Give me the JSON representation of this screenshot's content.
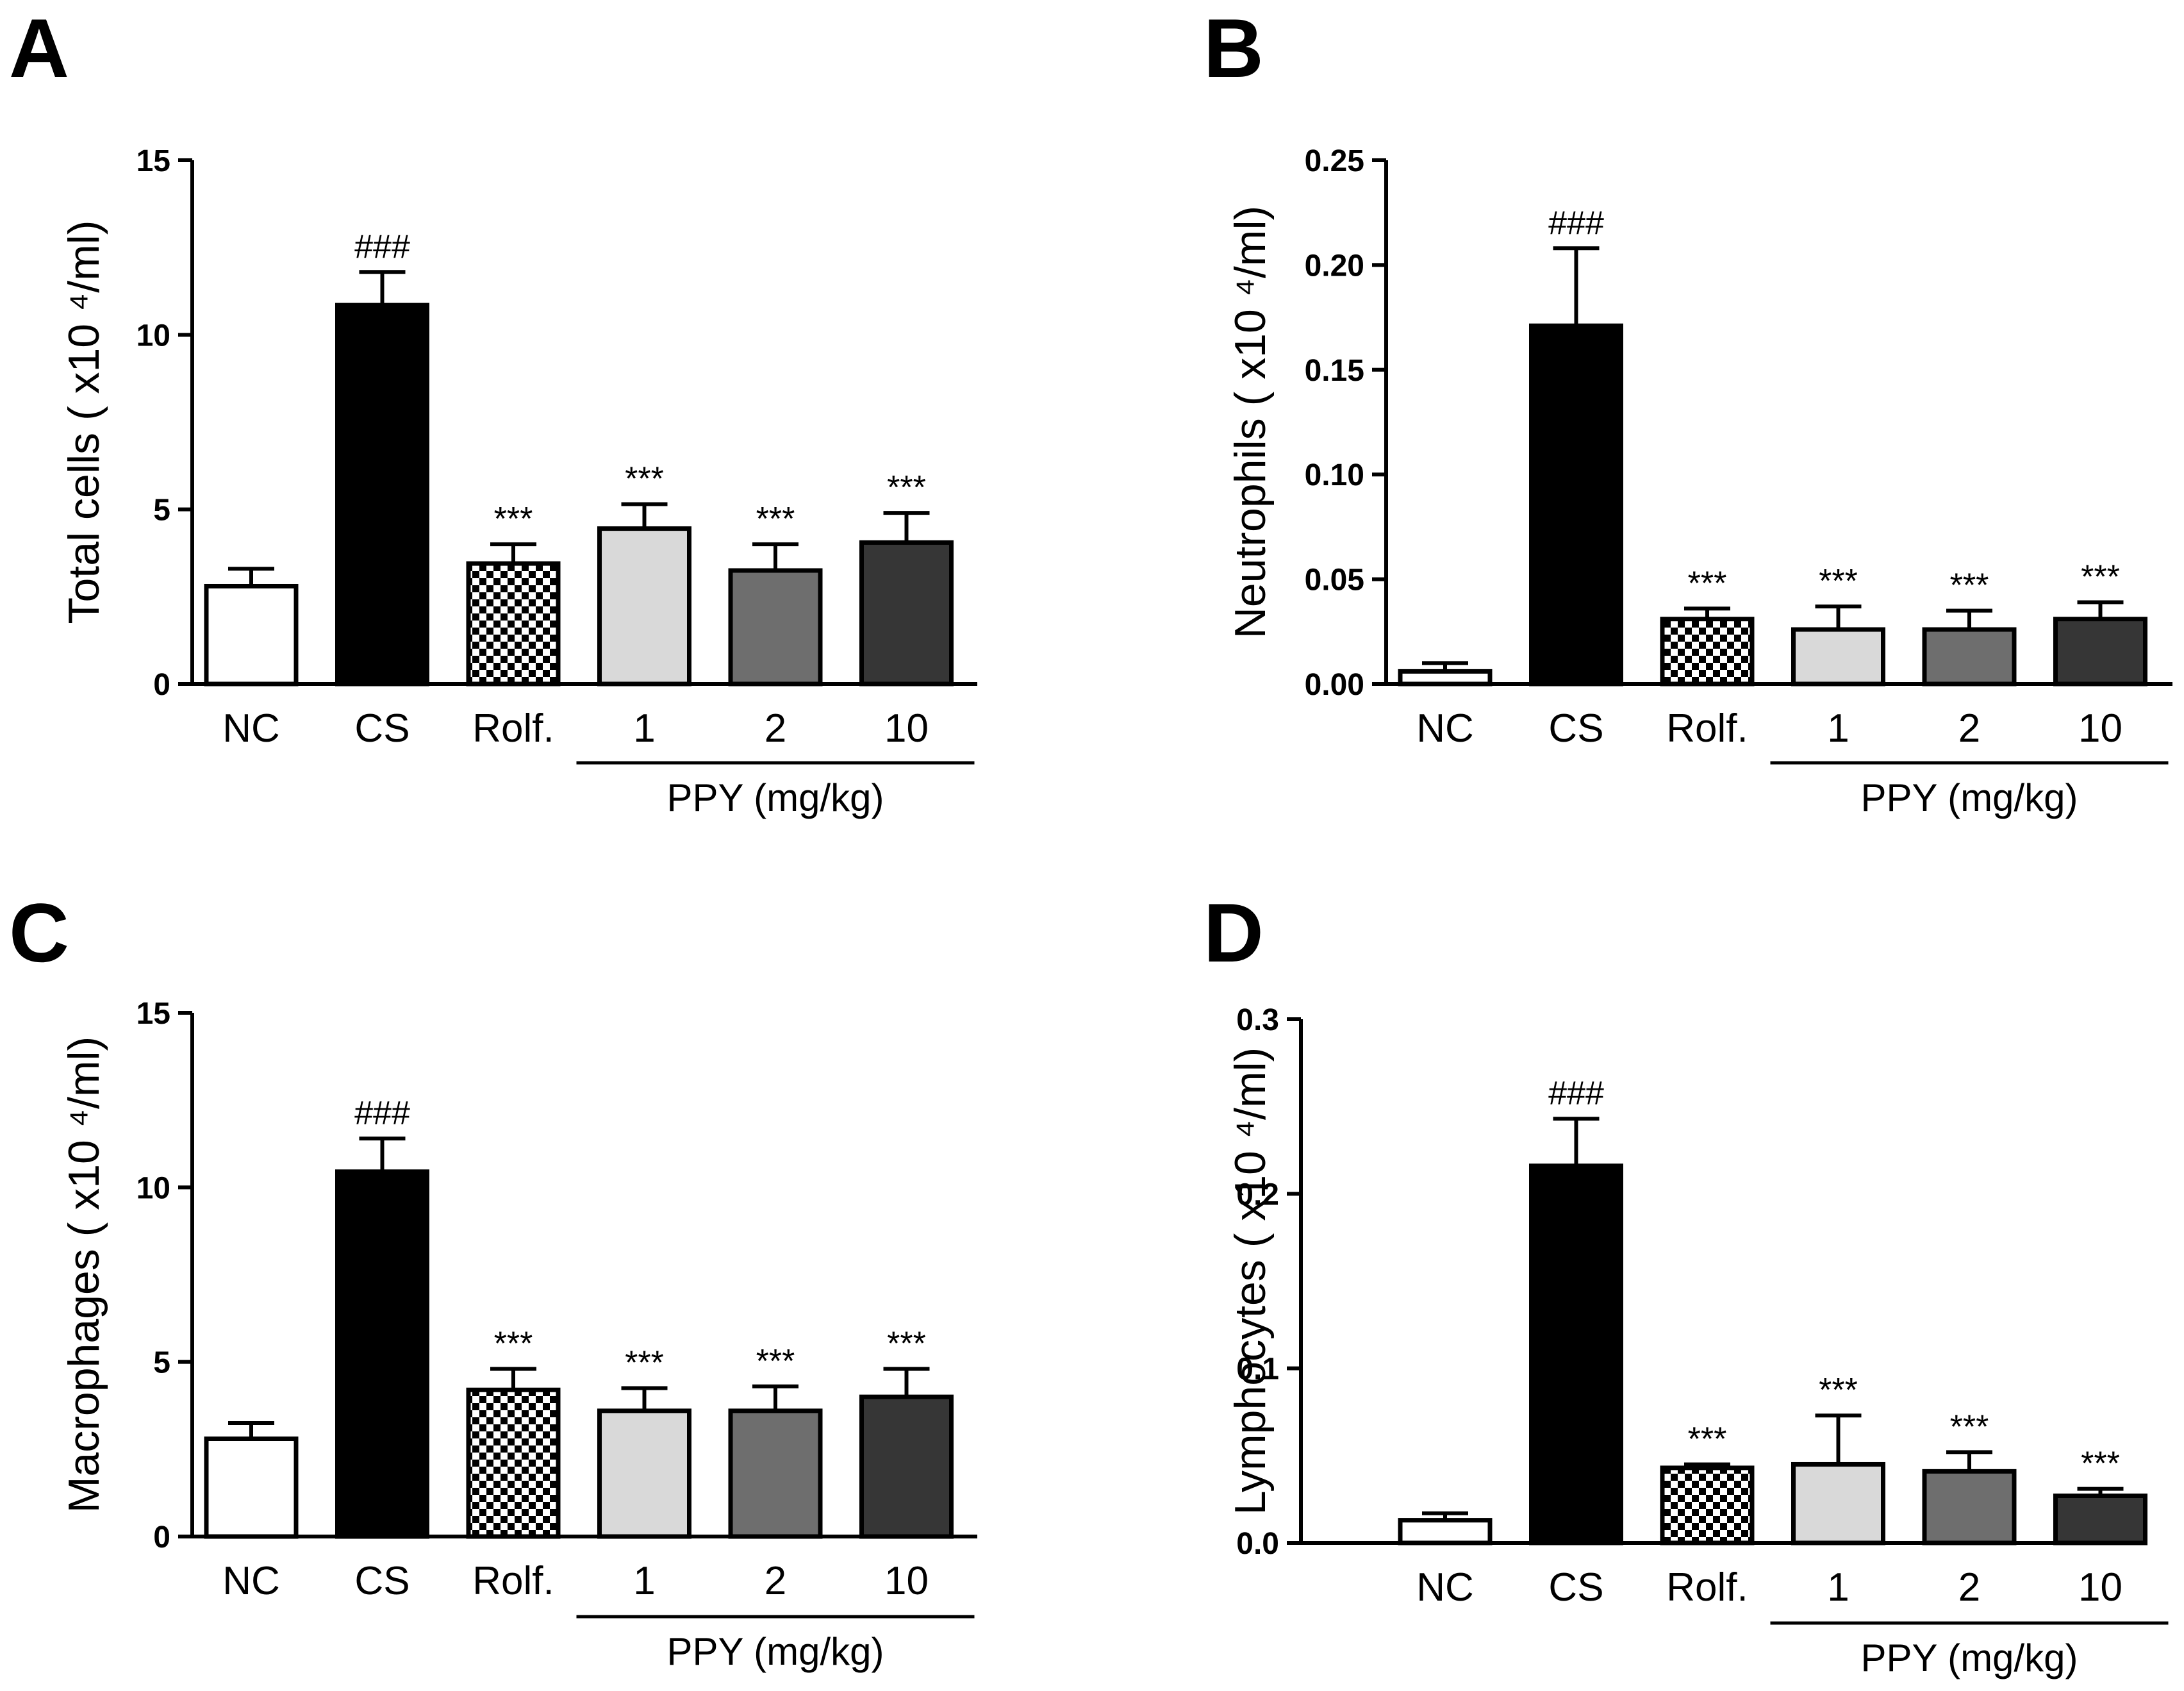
{
  "chart_data": [
    {
      "panel": "A",
      "type": "bar",
      "ylabel": "Total cells ( x10 ⁴/ml)",
      "ylim": [
        0,
        15
      ],
      "yticks": [
        "0",
        "5",
        "10",
        "15"
      ],
      "categories": [
        "NC",
        "CS",
        "Rolf.",
        "1",
        "2",
        "10"
      ],
      "values": [
        2.8,
        10.85,
        3.45,
        4.45,
        3.25,
        4.05
      ],
      "errors": [
        0.5,
        0.95,
        0.55,
        0.7,
        0.75,
        0.85
      ],
      "significance": [
        "",
        "###",
        "***",
        "***",
        "***",
        "***"
      ],
      "group_label": "PPY (mg/kg)"
    },
    {
      "panel": "B",
      "type": "bar",
      "ylabel": "Neutrophils ( x10 ⁴/ml)",
      "ylim": [
        0,
        0.25
      ],
      "yticks": [
        "0.00",
        "0.05",
        "0.10",
        "0.15",
        "0.20",
        "0.25"
      ],
      "categories": [
        "NC",
        "CS",
        "Rolf.",
        "1",
        "2",
        "10"
      ],
      "values": [
        0.006,
        0.171,
        0.031,
        0.026,
        0.026,
        0.031
      ],
      "errors": [
        0.004,
        0.037,
        0.005,
        0.011,
        0.009,
        0.008
      ],
      "significance": [
        "",
        "###",
        "***",
        "***",
        "***",
        "***"
      ],
      "group_label": "PPY (mg/kg)"
    },
    {
      "panel": "C",
      "type": "bar",
      "ylabel": "Macrophages ( x10 ⁴/ml)",
      "ylim": [
        0,
        15
      ],
      "yticks": [
        "0",
        "5",
        "10",
        "15"
      ],
      "categories": [
        "NC",
        "CS",
        "Rolf.",
        "1",
        "2",
        "10"
      ],
      "values": [
        2.8,
        10.45,
        4.2,
        3.6,
        3.6,
        4.0
      ],
      "errors": [
        0.45,
        0.95,
        0.6,
        0.65,
        0.7,
        0.8
      ],
      "significance": [
        "",
        "###",
        "***",
        "***",
        "***",
        "***"
      ],
      "group_label": "PPY (mg/kg)"
    },
    {
      "panel": "D",
      "type": "bar",
      "ylabel": "Lymphocytes ( x10 ⁴/ml)",
      "ylim": [
        0,
        0.3
      ],
      "yticks": [
        "0.0",
        "0.1",
        "0.2",
        "0.3"
      ],
      "categories": [
        "NC",
        "CS",
        "Rolf.",
        "1",
        "2",
        "10"
      ],
      "values": [
        0.013,
        0.216,
        0.043,
        0.045,
        0.041,
        0.027
      ],
      "errors": [
        0.004,
        0.027,
        0.002,
        0.028,
        0.011,
        0.004
      ],
      "significance": [
        "",
        "###",
        "***",
        "***",
        "***",
        "***"
      ],
      "group_label": "PPY (mg/kg)"
    }
  ],
  "bar_fills": [
    "#ffffff",
    "#000000",
    "checker",
    "#d9d9d9",
    "#6e6e6e",
    "#363636"
  ]
}
